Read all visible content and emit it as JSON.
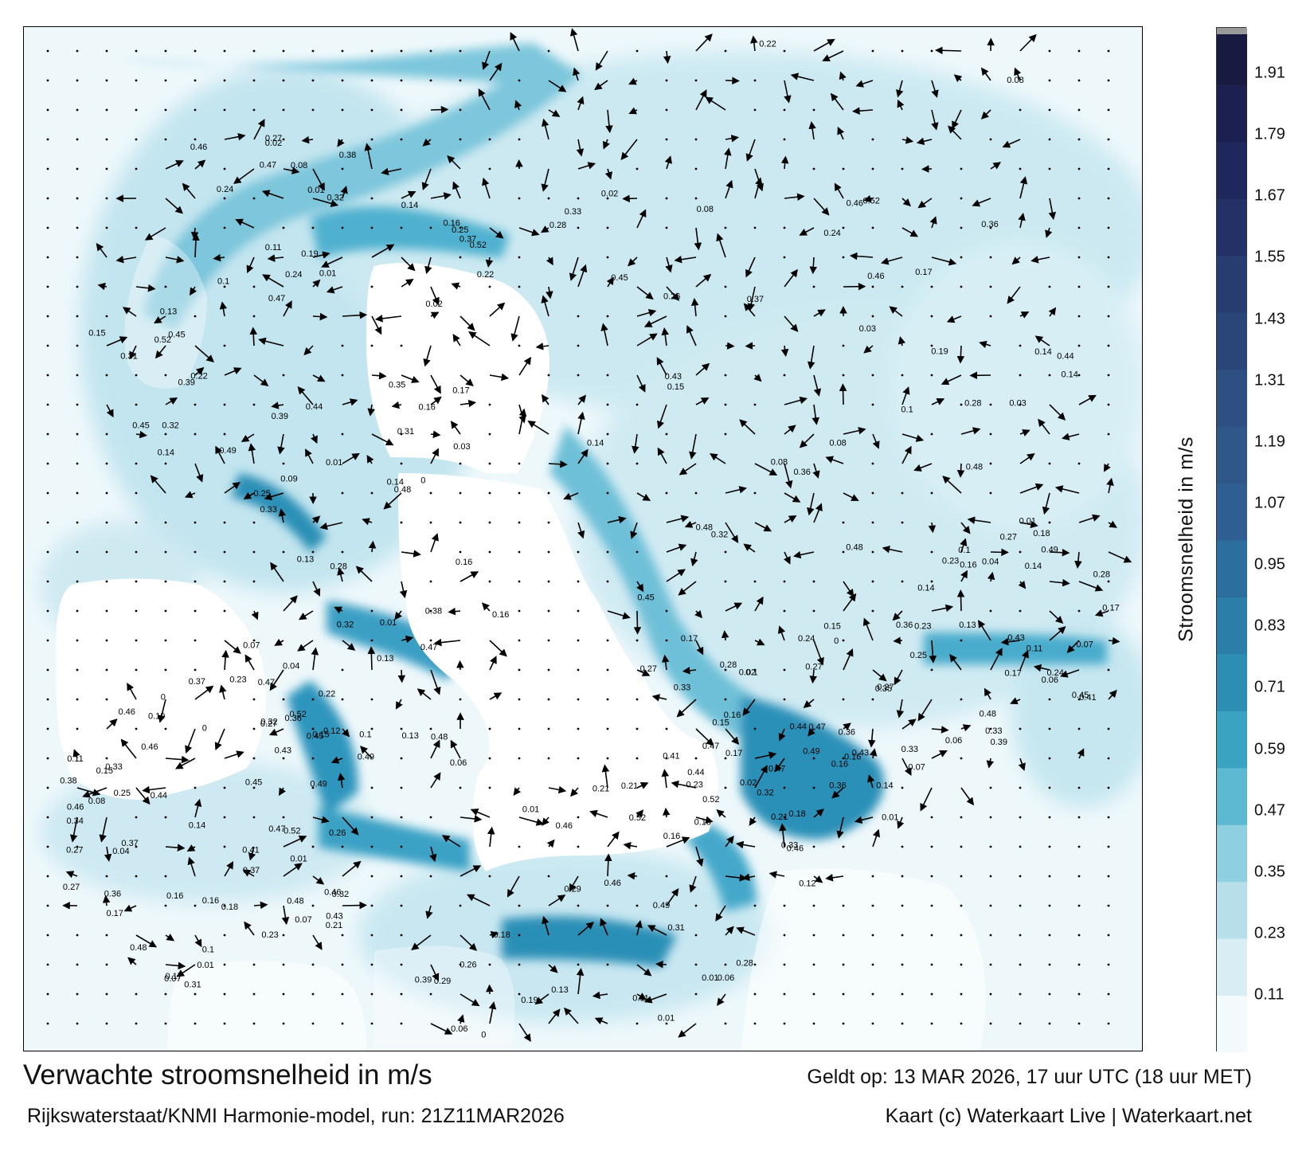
{
  "map": {
    "units": "m/s",
    "scale_min": 0,
    "scale_max": 2.0,
    "sample_labels": [
      "0.17",
      "0.05",
      "0.14",
      "0.04",
      "0.15",
      "0.13",
      "0.09",
      "0.06",
      "0.03",
      "0.12",
      "0.11",
      "0.07",
      "0.08",
      "0.23",
      "0.34",
      "0.27",
      "0.21",
      "0.22",
      "0.31",
      "0.26",
      "0.19",
      "0.35",
      "0.28",
      "0.16",
      "0.33",
      "0.38",
      "0.46",
      "0.45",
      "0.41",
      "0.49",
      "0.52",
      "0.44",
      "0.36",
      "0.29",
      "0.24",
      "0.18",
      "0.25",
      "0.32",
      "0.43",
      "0.48",
      "0.47",
      "0.39",
      "0.37",
      "0.02",
      "0.01",
      "0.1",
      "0"
    ]
  },
  "colorbar": {
    "ticks": [
      "1.91",
      "1.79",
      "1.67",
      "1.55",
      "1.43",
      "1.31",
      "1.19",
      "1.07",
      "0.95",
      "0.83",
      "0.71",
      "0.59",
      "0.47",
      "0.35",
      "0.23",
      "0.11"
    ],
    "title": "Stroomsnelheid in m/s",
    "colors": [
      "#f3fafc",
      "#d8eef4",
      "#b7dfea",
      "#8ecfe0",
      "#5db8d1",
      "#3aa3c2",
      "#2c8eb3",
      "#2b7ea7",
      "#2c6e9d",
      "#2f5f92",
      "#2f5889",
      "#2d4f82",
      "#2a4679",
      "#273c6f",
      "#233166",
      "#1f285c",
      "#1b2050",
      "#181a3f"
    ]
  },
  "captions": {
    "title": "Verwachte stroomsnelheid in m/s",
    "source": "Rijkswaterstaat/KNMI Harmonie-model, run: 21Z11MAR2026",
    "valid": "Geldt op: 13 MAR 2026, 17 uur UTC (18 uur MET)",
    "copyright": "Kaart (c) Waterkaart Live | Waterkaart.net"
  }
}
